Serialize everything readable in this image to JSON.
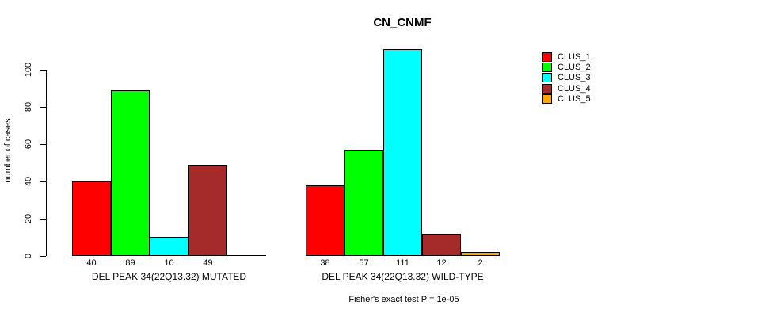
{
  "chart_data": {
    "type": "bar",
    "title": "CN_CNMF",
    "ylabel": "number of cases",
    "yticks": [
      0,
      20,
      40,
      60,
      80,
      100
    ],
    "ylim": [
      0,
      111
    ],
    "grid": false,
    "legend_position": "right-inside",
    "series": [
      {
        "name": "CLUS_1",
        "color": "#FF0000"
      },
      {
        "name": "CLUS_2",
        "color": "#00FF00"
      },
      {
        "name": "CLUS_3",
        "color": "#00FFFF"
      },
      {
        "name": "CLUS_4",
        "color": "#A52A2A"
      },
      {
        "name": "CLUS_5",
        "color": "#FFA500"
      }
    ],
    "groups": [
      {
        "label": "DEL PEAK 34(22Q13.32) MUTATED",
        "values": [
          40,
          89,
          10,
          49,
          0
        ],
        "value_labels": [
          "40",
          "89",
          "10",
          "49",
          ""
        ]
      },
      {
        "label": "DEL PEAK 34(22Q13.32) WILD-TYPE",
        "values": [
          38,
          57,
          111,
          12,
          2
        ],
        "value_labels": [
          "38",
          "57",
          "111",
          "12",
          "2"
        ]
      }
    ],
    "annotation": "Fisher's exact test P = 1e-05"
  }
}
